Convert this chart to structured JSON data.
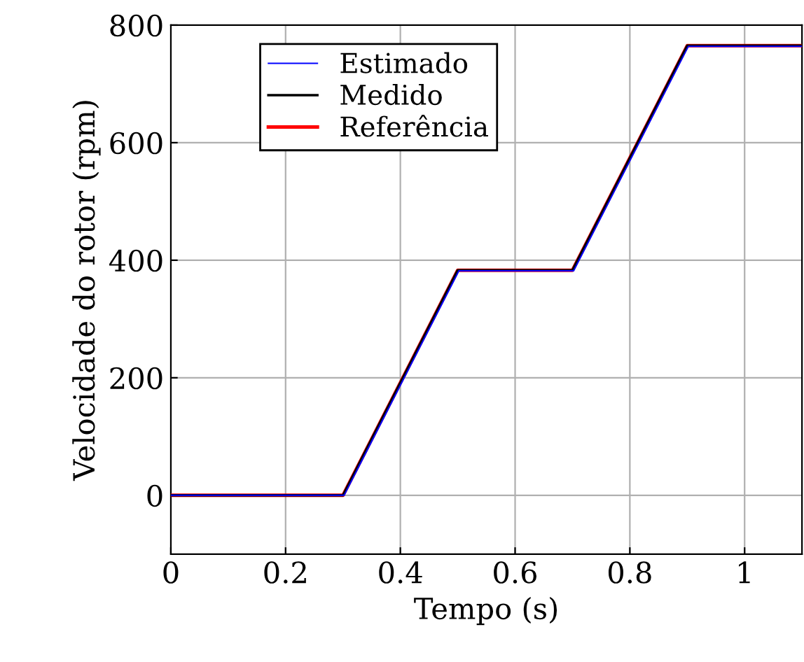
{
  "chart_data": {
    "type": "line",
    "xlabel": "Tempo (s)",
    "ylabel": "Velocidade do rotor (rpm)",
    "xlim": [
      0,
      1.1
    ],
    "ylim": [
      -100,
      800
    ],
    "xticks": [
      0,
      0.2,
      0.4,
      0.6,
      0.8,
      1
    ],
    "yticks": [
      0,
      200,
      400,
      600,
      800
    ],
    "grid": true,
    "legend": "top left",
    "line_style": "solid",
    "series": [
      {
        "name": "Estimado",
        "color": "#0000ff",
        "x": [
          0,
          0.302,
          0.502,
          0.702,
          0.902,
          1.1
        ],
        "values": [
          0,
          0,
          382,
          382,
          764,
          764
        ]
      },
      {
        "name": "Medido",
        "color": "#000000",
        "x": [
          0,
          0.3,
          0.5,
          0.7,
          0.9,
          1.1
        ],
        "values": [
          0,
          0,
          383,
          383,
          765,
          765
        ]
      },
      {
        "name": "Referência",
        "color": "#ff0000",
        "x": [
          0,
          0.3,
          0.5,
          0.7,
          0.9,
          1.1
        ],
        "values": [
          0,
          0,
          383,
          383,
          765,
          765
        ]
      }
    ]
  }
}
